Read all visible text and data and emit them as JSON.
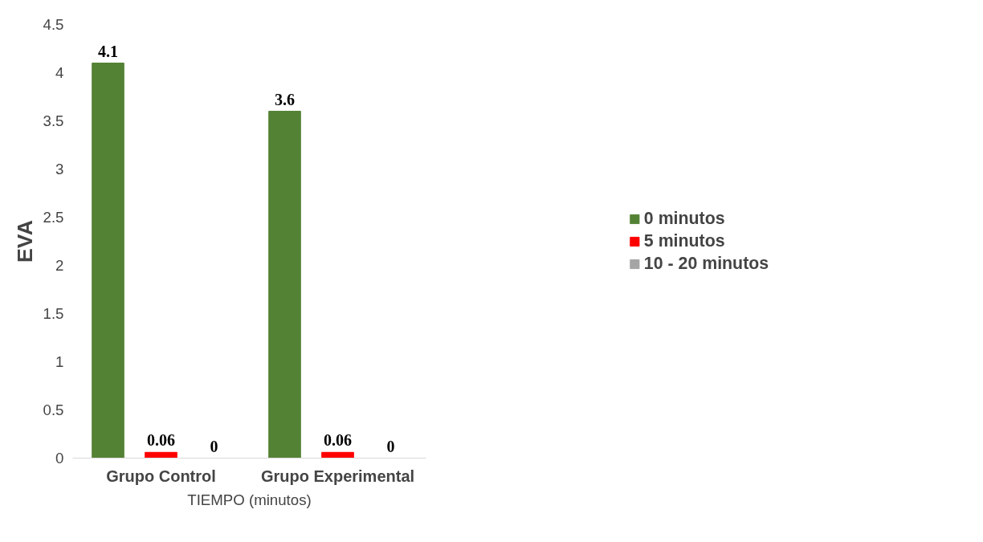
{
  "chart_data": {
    "type": "bar",
    "xlabel": "TIEMPO (minutos)",
    "ylabel": "EVA",
    "categories": [
      "Grupo Control",
      "Grupo Experimental"
    ],
    "series": [
      {
        "name": "0 minutos",
        "color": "#548235",
        "values": [
          4.1,
          3.6
        ]
      },
      {
        "name": "5 minutos",
        "color": "#ff0000",
        "values": [
          0.06,
          0.06
        ]
      },
      {
        "name": "10 - 20 minutos",
        "color": "#a5a5a5",
        "values": [
          0,
          0
        ]
      }
    ],
    "ylim": [
      0,
      4.5
    ],
    "yticks": [
      0,
      0.5,
      1,
      1.5,
      2,
      2.5,
      3,
      3.5,
      4,
      4.5
    ],
    "data_labels": true,
    "legend": "right",
    "grid": false
  }
}
